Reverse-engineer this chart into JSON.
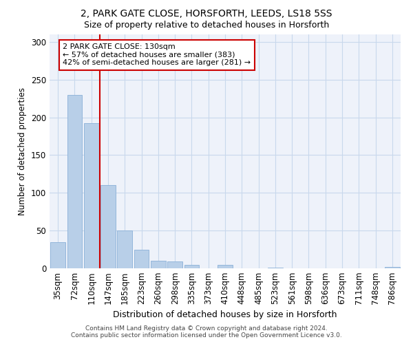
{
  "title1": "2, PARK GATE CLOSE, HORSFORTH, LEEDS, LS18 5SS",
  "title2": "Size of property relative to detached houses in Horsforth",
  "xlabel": "Distribution of detached houses by size in Horsforth",
  "ylabel": "Number of detached properties",
  "footer1": "Contains HM Land Registry data © Crown copyright and database right 2024.",
  "footer2": "Contains public sector information licensed under the Open Government Licence v3.0.",
  "categories": [
    "35sqm",
    "72sqm",
    "110sqm",
    "147sqm",
    "185sqm",
    "223sqm",
    "260sqm",
    "298sqm",
    "335sqm",
    "373sqm",
    "410sqm",
    "448sqm",
    "485sqm",
    "523sqm",
    "561sqm",
    "598sqm",
    "636sqm",
    "673sqm",
    "711sqm",
    "748sqm",
    "786sqm"
  ],
  "values": [
    35,
    230,
    192,
    110,
    50,
    25,
    10,
    9,
    5,
    0,
    5,
    0,
    0,
    1,
    0,
    0,
    0,
    0,
    0,
    0,
    2
  ],
  "bar_color": "#b8cfe8",
  "bar_edge_color": "#8ab0d8",
  "vline_x_index": 2.5,
  "vline_color": "#cc0000",
  "annotation_text": "2 PARK GATE CLOSE: 130sqm\n← 57% of detached houses are smaller (383)\n42% of semi-detached houses are larger (281) →",
  "ylim": [
    0,
    310
  ],
  "yticks": [
    0,
    50,
    100,
    150,
    200,
    250,
    300
  ],
  "grid_color": "#c8d8ec",
  "background_color": "#eef2fa"
}
